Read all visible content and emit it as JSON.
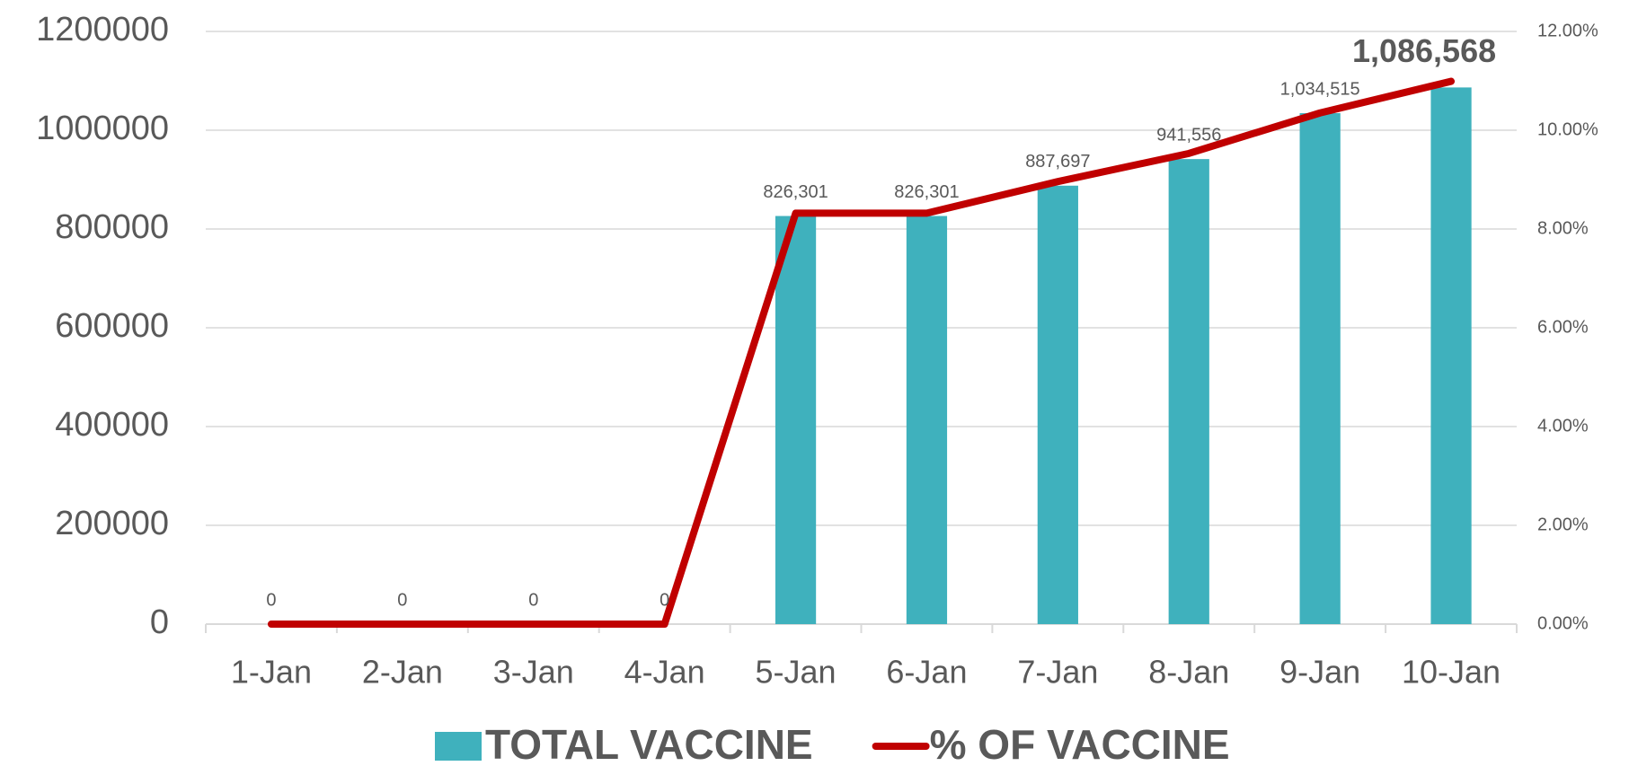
{
  "chart_data": {
    "type": "bar-line",
    "categories": [
      "1-Jan",
      "2-Jan",
      "3-Jan",
      "4-Jan",
      "5-Jan",
      "6-Jan",
      "7-Jan",
      "8-Jan",
      "9-Jan",
      "10-Jan"
    ],
    "series": [
      {
        "name": "TOTAL VACCINE",
        "type": "bar",
        "color": "#3fb1bd",
        "values": [
          0,
          0,
          0,
          0,
          826301,
          826301,
          887697,
          941556,
          1034515,
          1086568
        ],
        "value_labels": [
          "0",
          "0",
          "0",
          "0",
          "826,301",
          "826,301",
          "887,697",
          "941,556",
          "1,034,515",
          "1,086,568"
        ]
      },
      {
        "name": "% OF VACCINE",
        "type": "line",
        "axis": "y2",
        "color": "#c00000",
        "values": [
          0,
          0,
          0,
          0,
          8.32,
          8.32,
          8.96,
          9.53,
          10.35,
          10.99
        ]
      }
    ],
    "ylim": [
      0,
      1200000
    ],
    "yticks": [
      0,
      200000,
      400000,
      600000,
      800000,
      1000000,
      1200000
    ],
    "y2lim": [
      0,
      12
    ],
    "y2ticks": [
      {
        "value": 0,
        "label": "0.00%"
      },
      {
        "value": 2,
        "label": "2.00%"
      },
      {
        "value": 4,
        "label": "4.00%"
      },
      {
        "value": 6,
        "label": "6.00%"
      },
      {
        "value": 8,
        "label": "8.00%"
      },
      {
        "value": 10,
        "label": "10.00%"
      },
      {
        "value": 12,
        "label": "12.00%"
      }
    ],
    "grid": true,
    "legend": "bottom"
  }
}
